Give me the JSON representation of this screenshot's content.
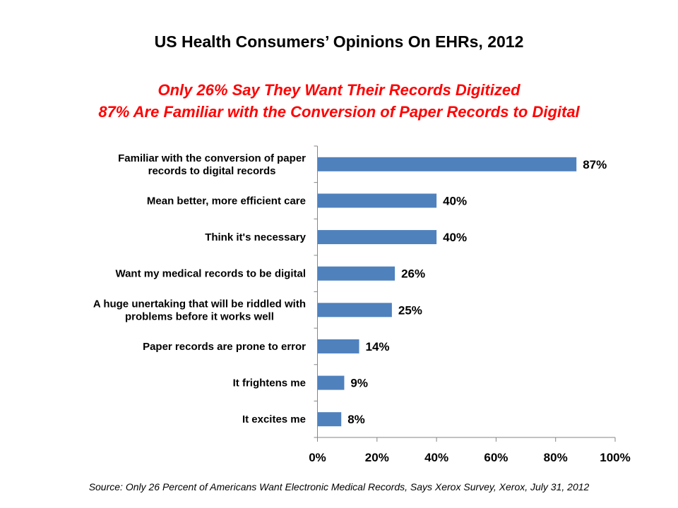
{
  "chart_data": {
    "type": "bar",
    "orientation": "horizontal",
    "title": "US Health Consumers’ Opinions On EHRs, 2012",
    "subtitle": [
      "Only 26% Say They Want Their Records Digitized",
      "87% Are Familiar with the Conversion of Paper Records to Digital"
    ],
    "categories": [
      [
        "Familiar with the conversion of paper",
        "records to digital records"
      ],
      [
        "Mean better, more efficient care"
      ],
      [
        "Think it's necessary"
      ],
      [
        "Want my medical records to be digital"
      ],
      [
        "A huge unertaking that will be riddled with",
        "problems before it works well"
      ],
      [
        "Paper records are prone to error"
      ],
      [
        "It frightens me"
      ],
      [
        "It excites me"
      ]
    ],
    "values": [
      87,
      40,
      40,
      26,
      25,
      14,
      9,
      8
    ],
    "value_labels": [
      "87%",
      "40%",
      "40%",
      "26%",
      "25%",
      "14%",
      "9%",
      "8%"
    ],
    "xlim": [
      0,
      100
    ],
    "xticks": [
      0,
      20,
      40,
      60,
      80,
      100
    ],
    "xtick_labels": [
      "0%",
      "20%",
      "40%",
      "60%",
      "80%",
      "100%"
    ],
    "xlabel": "",
    "ylabel": "",
    "grid": false,
    "legend": "none",
    "bar_color": "#4f81bd",
    "source": "Source: Only 26 Percent of Americans Want Electronic Medical Records, Says Xerox Survey, Xerox, July 31, 2012"
  }
}
